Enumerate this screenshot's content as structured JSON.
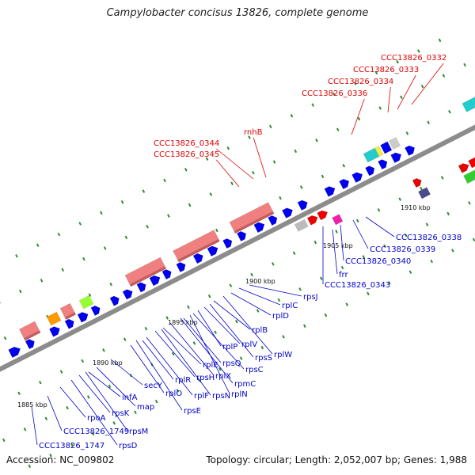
{
  "title": "Campylobacter concisus 13826, complete genome",
  "footer": {
    "accession": "Accession: NC_009802",
    "summary": "Topology: circular; Length: 2,052,007 bp; Genes: 1,988"
  },
  "colors": {
    "backbone": "#8c8c8c",
    "tick": "#2e8b2e",
    "forward_gene": "#0000ee",
    "reverse_gene": "#ee0000",
    "rrna_block": "#f08080",
    "label_blue": "#0000cc",
    "label_red": "#dd0000"
  },
  "kbp_markers": [
    "1885 kbp",
    "1890 kbp",
    "1895 kbp",
    "1900 kbp",
    "1905 kbp",
    "1910 kbp"
  ],
  "gene_labels_blue": [
    "CCC13826_1747",
    "rpsD",
    "CCC13826_1749",
    "rpsM",
    "rpoA",
    "rpsK",
    "map",
    "infA",
    "secY",
    "rpsE",
    "rplO",
    "rplR",
    "rplF",
    "rpsH",
    "rpsN",
    "rplE",
    "rplX",
    "rpmC",
    "rplN",
    "rpsQ",
    "rpsC",
    "rplP",
    "rplV",
    "rpsS",
    "rplB",
    "rplW",
    "rplD",
    "rplC",
    "rpsJ",
    "CCC13826_0343",
    "frr",
    "CCC13826_0340",
    "CCC13826_0339",
    "CCC13826_0338"
  ],
  "gene_labels_red": [
    "CCC13826_0345",
    "CCC13826_0344",
    "rnhB",
    "CCC13826_0336",
    "CCC13826_0334",
    "CCC13826_0333",
    "CCC13826_0332"
  ]
}
